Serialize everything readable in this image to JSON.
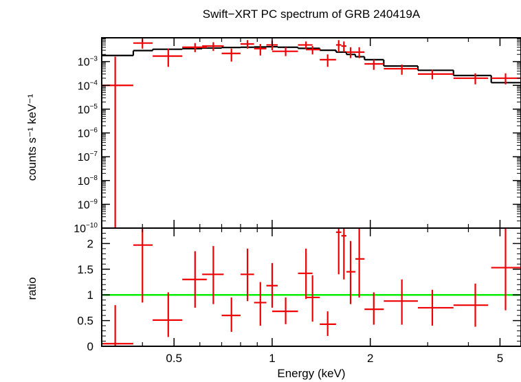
{
  "chart_data": [
    {
      "type": "scatter",
      "title": "Swift−XRT PC spectrum of GRB 240419A",
      "ylabel": "counts s⁻¹ keV⁻¹",
      "xscale": "log",
      "yscale": "log",
      "xlim": [
        0.3,
        5.8
      ],
      "ylim": [
        1e-10,
        0.01
      ],
      "ytick_labels": [
        {
          "mant": "10",
          "exp": "−3",
          "value": 0.001
        },
        {
          "mant": "10",
          "exp": "−4",
          "value": 0.0001
        },
        {
          "mant": "10",
          "exp": "−5",
          "value": 1e-05
        },
        {
          "mant": "10",
          "exp": "−6",
          "value": 1e-06
        },
        {
          "mant": "10",
          "exp": "−7",
          "value": 1e-07
        },
        {
          "mant": "10",
          "exp": "−8",
          "value": 1e-08
        },
        {
          "mant": "10",
          "exp": "−9",
          "value": 1e-09
        },
        {
          "mant": "10",
          "exp": "−10",
          "value": 1e-10
        }
      ],
      "colors": {
        "data": "#ee0000",
        "model": "#000000"
      },
      "series": [
        {
          "kind": "data",
          "points": [
            {
              "x": 0.33,
              "xlo": 0.3,
              "xhi": 0.375,
              "y": 0.0001,
              "ylo": 1e-10,
              "yhi": 0.0016
            },
            {
              "x": 0.4,
              "xlo": 0.375,
              "xhi": 0.43,
              "y": 0.006,
              "ylo": 0.0035,
              "yhi": 0.009
            },
            {
              "x": 0.48,
              "xlo": 0.43,
              "xhi": 0.53,
              "y": 0.0017,
              "ylo": 0.0006,
              "yhi": 0.0035
            },
            {
              "x": 0.58,
              "xlo": 0.53,
              "xhi": 0.63,
              "y": 0.004,
              "ylo": 0.0025,
              "yhi": 0.006
            },
            {
              "x": 0.66,
              "xlo": 0.61,
              "xhi": 0.71,
              "y": 0.0045,
              "ylo": 0.0028,
              "yhi": 0.0065
            },
            {
              "x": 0.75,
              "xlo": 0.7,
              "xhi": 0.8,
              "y": 0.0022,
              "ylo": 0.001,
              "yhi": 0.0035
            },
            {
              "x": 0.84,
              "xlo": 0.8,
              "xhi": 0.88,
              "y": 0.0055,
              "ylo": 0.0035,
              "yhi": 0.008
            },
            {
              "x": 0.92,
              "xlo": 0.88,
              "xhi": 0.96,
              "y": 0.0035,
              "ylo": 0.0018,
              "yhi": 0.0055
            },
            {
              "x": 1.0,
              "xlo": 0.96,
              "xhi": 1.04,
              "y": 0.005,
              "ylo": 0.003,
              "yhi": 0.0075
            },
            {
              "x": 1.1,
              "xlo": 1.0,
              "xhi": 1.2,
              "y": 0.0027,
              "ylo": 0.0017,
              "yhi": 0.004
            },
            {
              "x": 1.27,
              "xlo": 1.2,
              "xhi": 1.33,
              "y": 0.005,
              "ylo": 0.0035,
              "yhi": 0.007
            },
            {
              "x": 1.33,
              "xlo": 1.27,
              "xhi": 1.4,
              "y": 0.0032,
              "ylo": 0.002,
              "yhi": 0.0045
            },
            {
              "x": 1.48,
              "xlo": 1.4,
              "xhi": 1.57,
              "y": 0.0012,
              "ylo": 0.0006,
              "yhi": 0.002
            },
            {
              "x": 1.6,
              "xlo": 1.57,
              "xhi": 1.63,
              "y": 0.005,
              "ylo": 0.0025,
              "yhi": 0.008
            },
            {
              "x": 1.66,
              "xlo": 1.63,
              "xhi": 1.69,
              "y": 0.0045,
              "ylo": 0.0025,
              "yhi": 0.007
            },
            {
              "x": 1.74,
              "xlo": 1.69,
              "xhi": 1.8,
              "y": 0.0025,
              "ylo": 0.0014,
              "yhi": 0.004
            },
            {
              "x": 1.85,
              "xlo": 1.8,
              "xhi": 1.92,
              "y": 0.0025,
              "ylo": 0.0014,
              "yhi": 0.004
            },
            {
              "x": 2.05,
              "xlo": 1.92,
              "xhi": 2.2,
              "y": 0.0008,
              "ylo": 0.00045,
              "yhi": 0.0012
            },
            {
              "x": 2.5,
              "xlo": 2.2,
              "xhi": 2.8,
              "y": 0.0005,
              "ylo": 0.00028,
              "yhi": 0.00075
            },
            {
              "x": 3.1,
              "xlo": 2.8,
              "xhi": 3.6,
              "y": 0.0003,
              "ylo": 0.00018,
              "yhi": 0.00045
            },
            {
              "x": 4.2,
              "xlo": 3.6,
              "xhi": 4.6,
              "y": 0.0002,
              "ylo": 0.00011,
              "yhi": 0.00032
            },
            {
              "x": 5.2,
              "xlo": 4.7,
              "xhi": 5.8,
              "y": 0.0002,
              "ylo": 0.00011,
              "yhi": 0.00032
            }
          ]
        },
        {
          "kind": "model",
          "steps": [
            {
              "xlo": 0.3,
              "xhi": 0.375,
              "y": 0.0018
            },
            {
              "xlo": 0.375,
              "xhi": 0.43,
              "y": 0.0029
            },
            {
              "xlo": 0.43,
              "xhi": 0.53,
              "y": 0.0033
            },
            {
              "xlo": 0.53,
              "xhi": 0.61,
              "y": 0.0035
            },
            {
              "xlo": 0.61,
              "xhi": 0.7,
              "y": 0.0037
            },
            {
              "xlo": 0.7,
              "xhi": 0.8,
              "y": 0.0039
            },
            {
              "xlo": 0.8,
              "xhi": 0.88,
              "y": 0.004
            },
            {
              "xlo": 0.88,
              "xhi": 0.96,
              "y": 0.0041
            },
            {
              "xlo": 0.96,
              "xhi": 1.04,
              "y": 0.0042
            },
            {
              "xlo": 1.04,
              "xhi": 1.2,
              "y": 0.004
            },
            {
              "xlo": 1.2,
              "xhi": 1.4,
              "y": 0.0036
            },
            {
              "xlo": 1.4,
              "xhi": 1.57,
              "y": 0.003
            },
            {
              "xlo": 1.57,
              "xhi": 1.69,
              "y": 0.0025
            },
            {
              "xlo": 1.69,
              "xhi": 1.8,
              "y": 0.002
            },
            {
              "xlo": 1.8,
              "xhi": 1.92,
              "y": 0.0016
            },
            {
              "xlo": 1.92,
              "xhi": 2.2,
              "y": 0.0012
            },
            {
              "xlo": 2.2,
              "xhi": 2.8,
              "y": 0.00065
            },
            {
              "xlo": 2.8,
              "xhi": 3.6,
              "y": 0.00043
            },
            {
              "xlo": 3.6,
              "xhi": 4.7,
              "y": 0.00026
            },
            {
              "xlo": 4.7,
              "xhi": 5.8,
              "y": 0.00013
            }
          ]
        }
      ]
    },
    {
      "type": "scatter",
      "xlabel": "Energy (keV)",
      "ylabel": "ratio",
      "xscale": "log",
      "yscale": "linear",
      "xlim": [
        0.3,
        5.8
      ],
      "ylim": [
        0,
        2.3
      ],
      "xticks": [
        0.5,
        1,
        2,
        5
      ],
      "xtick_labels": [
        "0.5",
        "1",
        "2",
        "5"
      ],
      "yticks": [
        0,
        0.5,
        1,
        1.5,
        2
      ],
      "ytick_labels": [
        "0",
        "0.5",
        "1",
        "1.5",
        "2"
      ],
      "reference_line": 1,
      "colors": {
        "data": "#ee0000",
        "reference": "#00ee00"
      },
      "series": [
        {
          "kind": "data",
          "points": [
            {
              "x": 0.33,
              "xlo": 0.3,
              "xhi": 0.375,
              "y": 0.05,
              "ylo": 0.0,
              "yhi": 0.8
            },
            {
              "x": 0.4,
              "xlo": 0.375,
              "xhi": 0.43,
              "y": 1.97,
              "ylo": 0.85,
              "yhi": 2.3
            },
            {
              "x": 0.48,
              "xlo": 0.43,
              "xhi": 0.53,
              "y": 0.51,
              "ylo": 0.18,
              "yhi": 1.05
            },
            {
              "x": 0.58,
              "xlo": 0.53,
              "xhi": 0.63,
              "y": 1.3,
              "ylo": 0.75,
              "yhi": 1.85
            },
            {
              "x": 0.66,
              "xlo": 0.61,
              "xhi": 0.71,
              "y": 1.4,
              "ylo": 0.82,
              "yhi": 1.95
            },
            {
              "x": 0.75,
              "xlo": 0.7,
              "xhi": 0.8,
              "y": 0.6,
              "ylo": 0.28,
              "yhi": 0.95
            },
            {
              "x": 0.84,
              "xlo": 0.8,
              "xhi": 0.88,
              "y": 1.4,
              "ylo": 0.88,
              "yhi": 1.9
            },
            {
              "x": 0.92,
              "xlo": 0.88,
              "xhi": 0.96,
              "y": 0.85,
              "ylo": 0.4,
              "yhi": 1.25
            },
            {
              "x": 1.0,
              "xlo": 0.96,
              "xhi": 1.04,
              "y": 1.18,
              "ylo": 0.75,
              "yhi": 1.62
            },
            {
              "x": 1.1,
              "xlo": 1.0,
              "xhi": 1.2,
              "y": 0.68,
              "ylo": 0.43,
              "yhi": 0.95
            },
            {
              "x": 1.27,
              "xlo": 1.2,
              "xhi": 1.33,
              "y": 1.42,
              "ylo": 0.92,
              "yhi": 1.9
            },
            {
              "x": 1.33,
              "xlo": 1.27,
              "xhi": 1.4,
              "y": 0.95,
              "ylo": 0.48,
              "yhi": 1.38
            },
            {
              "x": 1.48,
              "xlo": 1.4,
              "xhi": 1.57,
              "y": 0.43,
              "ylo": 0.2,
              "yhi": 0.68
            },
            {
              "x": 1.6,
              "xlo": 1.57,
              "xhi": 1.63,
              "y": 2.22,
              "ylo": 1.4,
              "yhi": 2.3
            },
            {
              "x": 1.66,
              "xlo": 1.63,
              "xhi": 1.69,
              "y": 2.15,
              "ylo": 1.3,
              "yhi": 2.3
            },
            {
              "x": 1.74,
              "xlo": 1.69,
              "xhi": 1.8,
              "y": 1.45,
              "ylo": 0.82,
              "yhi": 2.05
            },
            {
              "x": 1.85,
              "xlo": 1.8,
              "xhi": 1.92,
              "y": 1.7,
              "ylo": 0.95,
              "yhi": 2.3
            },
            {
              "x": 2.05,
              "xlo": 1.92,
              "xhi": 2.2,
              "y": 0.72,
              "ylo": 0.42,
              "yhi": 1.05
            },
            {
              "x": 2.5,
              "xlo": 2.2,
              "xhi": 2.8,
              "y": 0.88,
              "ylo": 0.42,
              "yhi": 1.3
            },
            {
              "x": 3.1,
              "xlo": 2.8,
              "xhi": 3.6,
              "y": 0.75,
              "ylo": 0.4,
              "yhi": 1.1
            },
            {
              "x": 4.2,
              "xlo": 3.6,
              "xhi": 4.6,
              "y": 0.8,
              "ylo": 0.38,
              "yhi": 1.22
            },
            {
              "x": 5.2,
              "xlo": 4.7,
              "xhi": 5.8,
              "y": 1.53,
              "ylo": 0.7,
              "yhi": 2.3
            }
          ]
        }
      ]
    }
  ]
}
